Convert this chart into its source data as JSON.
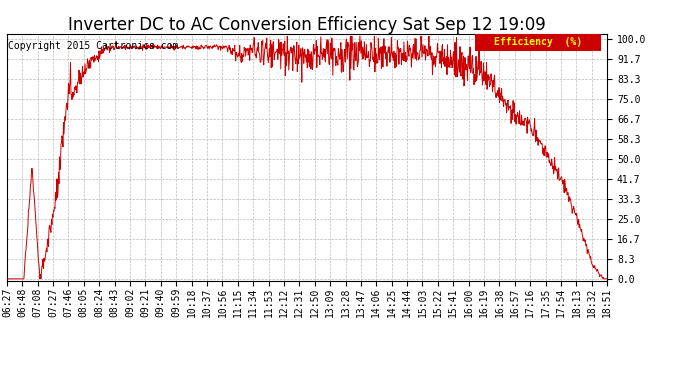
{
  "title": "Inverter DC to AC Conversion Efficiency Sat Sep 12 19:09",
  "copyright": "Copyright 2015 Cartronics.com",
  "legend_label": "Efficiency  (%)",
  "legend_bg": "#cc0000",
  "legend_text_color": "#ffff00",
  "line_color": "#cc0000",
  "bg_color": "#ffffff",
  "plot_bg_color": "#ffffff",
  "grid_color": "#bbbbbb",
  "yticks": [
    0.0,
    8.3,
    16.7,
    25.0,
    33.3,
    41.7,
    50.0,
    58.3,
    66.7,
    75.0,
    83.3,
    91.7,
    100.0
  ],
  "ylim": [
    -1,
    102
  ],
  "xtick_labels": [
    "06:27",
    "06:48",
    "07:08",
    "07:27",
    "07:46",
    "08:05",
    "08:24",
    "08:43",
    "09:02",
    "09:21",
    "09:40",
    "09:59",
    "10:18",
    "10:37",
    "10:56",
    "11:15",
    "11:34",
    "11:53",
    "12:12",
    "12:31",
    "12:50",
    "13:09",
    "13:28",
    "13:47",
    "14:06",
    "14:25",
    "14:44",
    "15:03",
    "15:22",
    "15:41",
    "16:00",
    "16:19",
    "16:38",
    "16:57",
    "17:16",
    "17:35",
    "17:54",
    "18:13",
    "18:32",
    "18:51"
  ],
  "title_fontsize": 12,
  "copyright_fontsize": 7,
  "tick_fontsize": 7
}
